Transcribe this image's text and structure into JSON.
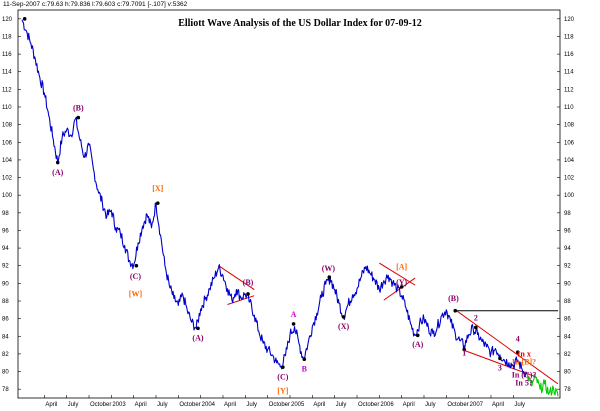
{
  "header": {
    "text": "11-Sep-2007  c:79.63  h:79.836  l:79.603  c:79.7091  [-.107]  v:5362"
  },
  "chart_data": {
    "type": "line",
    "title": "Elliott Wave Analysis of the US Dollar Index for 07-09-12",
    "ylim": [
      77,
      121
    ],
    "yticks": [
      78,
      80,
      82,
      84,
      86,
      88,
      90,
      92,
      94,
      96,
      98,
      100,
      102,
      104,
      106,
      108,
      110,
      112,
      114,
      116,
      118,
      120
    ],
    "xlim": [
      2002.0,
      2008.0
    ],
    "x_tick_labels": [
      {
        "t": 2002.25,
        "label": "April"
      },
      {
        "t": 2002.5,
        "label": "July"
      },
      {
        "t": 2002.75,
        "label": "October"
      },
      {
        "t": 2003.0,
        "label": "2003"
      },
      {
        "t": 2003.25,
        "label": "April"
      },
      {
        "t": 2003.5,
        "label": "July"
      },
      {
        "t": 2003.75,
        "label": "October"
      },
      {
        "t": 2004.0,
        "label": "2004"
      },
      {
        "t": 2004.25,
        "label": "April"
      },
      {
        "t": 2004.5,
        "label": "July"
      },
      {
        "t": 2004.75,
        "label": "October"
      },
      {
        "t": 2005.0,
        "label": "2005"
      },
      {
        "t": 2005.25,
        "label": "April"
      },
      {
        "t": 2005.5,
        "label": "July"
      },
      {
        "t": 2005.75,
        "label": "October"
      },
      {
        "t": 2006.0,
        "label": "2006"
      },
      {
        "t": 2006.25,
        "label": "April"
      },
      {
        "t": 2006.5,
        "label": "July"
      },
      {
        "t": 2006.75,
        "label": "October"
      },
      {
        "t": 2007.0,
        "label": "2007"
      },
      {
        "t": 2007.25,
        "label": "April"
      },
      {
        "t": 2007.5,
        "label": "July"
      }
    ],
    "series": [
      {
        "color": "#0000cc",
        "points": [
          [
            2002.0,
            119.9
          ],
          [
            2002.05,
            118.6
          ],
          [
            2002.1,
            117.2
          ],
          [
            2002.15,
            115.4
          ],
          [
            2002.2,
            113.3
          ],
          [
            2002.25,
            111.6
          ],
          [
            2002.3,
            109.0
          ],
          [
            2002.35,
            106.3
          ],
          [
            2002.4,
            103.7
          ],
          [
            2002.45,
            106.6
          ],
          [
            2002.5,
            107.4
          ],
          [
            2002.55,
            106.8
          ],
          [
            2002.6,
            108.7
          ],
          [
            2002.65,
            106.2
          ],
          [
            2002.7,
            104.3
          ],
          [
            2002.75,
            105.7
          ],
          [
            2002.8,
            102.9
          ],
          [
            2002.85,
            100.6
          ],
          [
            2002.9,
            99.1
          ],
          [
            2002.95,
            97.6
          ],
          [
            2003.0,
            98.3
          ],
          [
            2003.05,
            96.3
          ],
          [
            2003.1,
            95.7
          ],
          [
            2003.15,
            94.3
          ],
          [
            2003.2,
            92.6
          ],
          [
            2003.25,
            92.1
          ],
          [
            2003.3,
            94.6
          ],
          [
            2003.35,
            96.5
          ],
          [
            2003.4,
            97.8
          ],
          [
            2003.45,
            96.3
          ],
          [
            2003.5,
            99.1
          ],
          [
            2003.55,
            95.5
          ],
          [
            2003.6,
            92.0
          ],
          [
            2003.65,
            89.7
          ],
          [
            2003.7,
            88.3
          ],
          [
            2003.75,
            87.5
          ],
          [
            2003.8,
            88.7
          ],
          [
            2003.85,
            86.9
          ],
          [
            2003.9,
            85.6
          ],
          [
            2003.95,
            84.9
          ],
          [
            2004.0,
            87.1
          ],
          [
            2004.05,
            88.2
          ],
          [
            2004.1,
            89.4
          ],
          [
            2004.15,
            90.6
          ],
          [
            2004.2,
            91.8
          ],
          [
            2004.25,
            90.9
          ],
          [
            2004.3,
            89.4
          ],
          [
            2004.35,
            88.1
          ],
          [
            2004.4,
            89.3
          ],
          [
            2004.45,
            88.4
          ],
          [
            2004.5,
            88.8
          ],
          [
            2004.55,
            87.9
          ],
          [
            2004.6,
            86.4
          ],
          [
            2004.65,
            84.6
          ],
          [
            2004.7,
            83.2
          ],
          [
            2004.75,
            82.5
          ],
          [
            2004.8,
            81.9
          ],
          [
            2004.85,
            81.0
          ],
          [
            2004.9,
            80.6
          ],
          [
            2004.95,
            81.8
          ],
          [
            2005.0,
            84.2
          ],
          [
            2005.05,
            85.1
          ],
          [
            2005.1,
            83.2
          ],
          [
            2005.15,
            81.4
          ],
          [
            2005.2,
            83.1
          ],
          [
            2005.25,
            85.1
          ],
          [
            2005.3,
            86.6
          ],
          [
            2005.35,
            88.4
          ],
          [
            2005.4,
            89.9
          ],
          [
            2005.45,
            90.6
          ],
          [
            2005.5,
            89.3
          ],
          [
            2005.55,
            87.7
          ],
          [
            2005.6,
            86.2
          ],
          [
            2005.65,
            87.6
          ],
          [
            2005.7,
            88.7
          ],
          [
            2005.75,
            89.4
          ],
          [
            2005.8,
            90.8
          ],
          [
            2005.85,
            91.9
          ],
          [
            2005.9,
            91.1
          ],
          [
            2005.95,
            90.4
          ],
          [
            2006.0,
            89.3
          ],
          [
            2006.05,
            90.3
          ],
          [
            2006.1,
            90.9
          ],
          [
            2006.15,
            90.1
          ],
          [
            2006.2,
            89.4
          ],
          [
            2006.25,
            88.6
          ],
          [
            2006.3,
            87.2
          ],
          [
            2006.35,
            85.4
          ],
          [
            2006.4,
            84.1
          ],
          [
            2006.45,
            85.4
          ],
          [
            2006.5,
            86.0
          ],
          [
            2006.55,
            84.9
          ],
          [
            2006.6,
            84.3
          ],
          [
            2006.65,
            85.1
          ],
          [
            2006.7,
            86.4
          ],
          [
            2006.75,
            87.0
          ],
          [
            2006.8,
            85.6
          ],
          [
            2006.85,
            84.3
          ],
          [
            2006.9,
            83.5
          ],
          [
            2006.95,
            82.9
          ],
          [
            2007.0,
            84.2
          ],
          [
            2007.05,
            84.9
          ],
          [
            2007.1,
            84.2
          ],
          [
            2007.15,
            83.4
          ],
          [
            2007.2,
            82.8
          ],
          [
            2007.25,
            82.1
          ],
          [
            2007.3,
            82.6
          ],
          [
            2007.35,
            81.9
          ],
          [
            2007.4,
            81.3
          ],
          [
            2007.45,
            81.0
          ],
          [
            2007.5,
            80.7
          ],
          [
            2007.55,
            81.3
          ],
          [
            2007.6,
            80.2
          ],
          [
            2007.65,
            79.7
          ]
        ]
      },
      {
        "color": "#00cc00",
        "points": [
          [
            2007.65,
            79.7
          ],
          [
            2007.7,
            78.4
          ],
          [
            2007.75,
            79.3
          ],
          [
            2007.8,
            78.0
          ],
          [
            2007.85,
            78.6
          ],
          [
            2007.9,
            77.5
          ],
          [
            2007.95,
            78.1
          ],
          [
            2008.0,
            77.2
          ]
        ]
      }
    ],
    "trendlines": [
      {
        "color": "#dd0000",
        "from": [
          2004.2,
          92.0
        ],
        "to": [
          2004.6,
          89.3
        ]
      },
      {
        "color": "#dd0000",
        "from": [
          2004.3,
          87.6
        ],
        "to": [
          2004.6,
          88.6
        ]
      },
      {
        "color": "#dd0000",
        "from": [
          2006.0,
          92.3
        ],
        "to": [
          2006.4,
          89.8
        ]
      },
      {
        "color": "#dd0000",
        "from": [
          2006.05,
          88.1
        ],
        "to": [
          2006.4,
          90.6
        ]
      },
      {
        "color": "#dd0000",
        "from": [
          2006.85,
          87.0
        ],
        "to": [
          2008.0,
          78.6
        ]
      },
      {
        "color": "#dd0000",
        "from": [
          2006.95,
          82.4
        ],
        "to": [
          2007.75,
          79.4
        ]
      },
      {
        "color": "#000000",
        "from": [
          2006.85,
          86.9
        ],
        "to": [
          2008.0,
          86.9
        ]
      }
    ],
    "annotations": [
      {
        "text": "(A)",
        "t": 2002.4,
        "v": 102.3,
        "color": "#8b006b"
      },
      {
        "text": "(B)",
        "t": 2002.63,
        "v": 109.6,
        "color": "#8b006b"
      },
      {
        "text": "(C)",
        "t": 2003.27,
        "v": 90.5,
        "color": "#8b006b"
      },
      {
        "text": "[W]",
        "t": 2003.27,
        "v": 88.5,
        "color": "#ff6600"
      },
      {
        "text": "[X]",
        "t": 2003.52,
        "v": 100.5,
        "color": "#ff6600"
      },
      {
        "text": "(A)",
        "t": 2003.97,
        "v": 83.5,
        "color": "#8b006b"
      },
      {
        "text": "(B)",
        "t": 2004.53,
        "v": 89.8,
        "color": "#8b006b"
      },
      {
        "text": "A",
        "t": 2005.04,
        "v": 86.2,
        "color": "#cc00cc"
      },
      {
        "text": "(C)",
        "t": 2004.92,
        "v": 79.1,
        "color": "#8b006b"
      },
      {
        "text": "[Y]",
        "t": 2004.92,
        "v": 77.5,
        "color": "#ff6600"
      },
      {
        "text": "B",
        "t": 2005.16,
        "v": 80.0,
        "color": "#cc00cc"
      },
      {
        "text": "(W)",
        "t": 2005.43,
        "v": 91.4,
        "color": "#8b006b"
      },
      {
        "text": "(X)",
        "t": 2005.6,
        "v": 84.8,
        "color": "#8b006b"
      },
      {
        "text": "[A]",
        "t": 2006.25,
        "v": 91.6,
        "color": "#ff6600"
      },
      {
        "text": "(Y)",
        "t": 2006.25,
        "v": 89.8,
        "color": "#8b006b"
      },
      {
        "text": "(A)",
        "t": 2006.43,
        "v": 82.8,
        "color": "#8b006b"
      },
      {
        "text": "(B)",
        "t": 2006.83,
        "v": 88.0,
        "color": "#8b006b"
      },
      {
        "text": "1",
        "t": 2006.95,
        "v": 81.8,
        "color": "#8b006b"
      },
      {
        "text": "2",
        "t": 2007.08,
        "v": 85.8,
        "color": "#8b006b"
      },
      {
        "text": "3",
        "t": 2007.35,
        "v": 80.1,
        "color": "#8b006b"
      },
      {
        "text": "4",
        "t": 2007.55,
        "v": 83.4,
        "color": "#8b006b"
      },
      {
        "text": "In x",
        "t": 2007.62,
        "v": 81.7,
        "color": "#dd0000"
      },
      {
        "text": "In [B]?",
        "t": 2007.62,
        "v": 80.8,
        "color": "#ff6600"
      },
      {
        "text": "In (C)?",
        "t": 2007.62,
        "v": 79.3,
        "color": "#8b006b"
      },
      {
        "text": "In 5?",
        "t": 2007.62,
        "v": 78.4,
        "color": "#8b006b"
      }
    ],
    "pivot_points": [
      [
        2002.03,
        120.0
      ],
      [
        2002.4,
        103.7
      ],
      [
        2002.63,
        108.8
      ],
      [
        2003.28,
        92.0
      ],
      [
        2003.52,
        99.1
      ],
      [
        2003.97,
        84.9
      ],
      [
        2004.53,
        88.8
      ],
      [
        2004.92,
        80.5
      ],
      [
        2005.04,
        85.4
      ],
      [
        2005.16,
        81.4
      ],
      [
        2005.44,
        90.7
      ],
      [
        2005.6,
        86.2
      ],
      [
        2006.25,
        89.6
      ],
      [
        2006.43,
        84.1
      ],
      [
        2006.85,
        86.9
      ],
      [
        2006.95,
        82.5
      ],
      [
        2007.08,
        85.0
      ],
      [
        2007.35,
        81.5
      ],
      [
        2007.55,
        82.2
      ]
    ]
  }
}
